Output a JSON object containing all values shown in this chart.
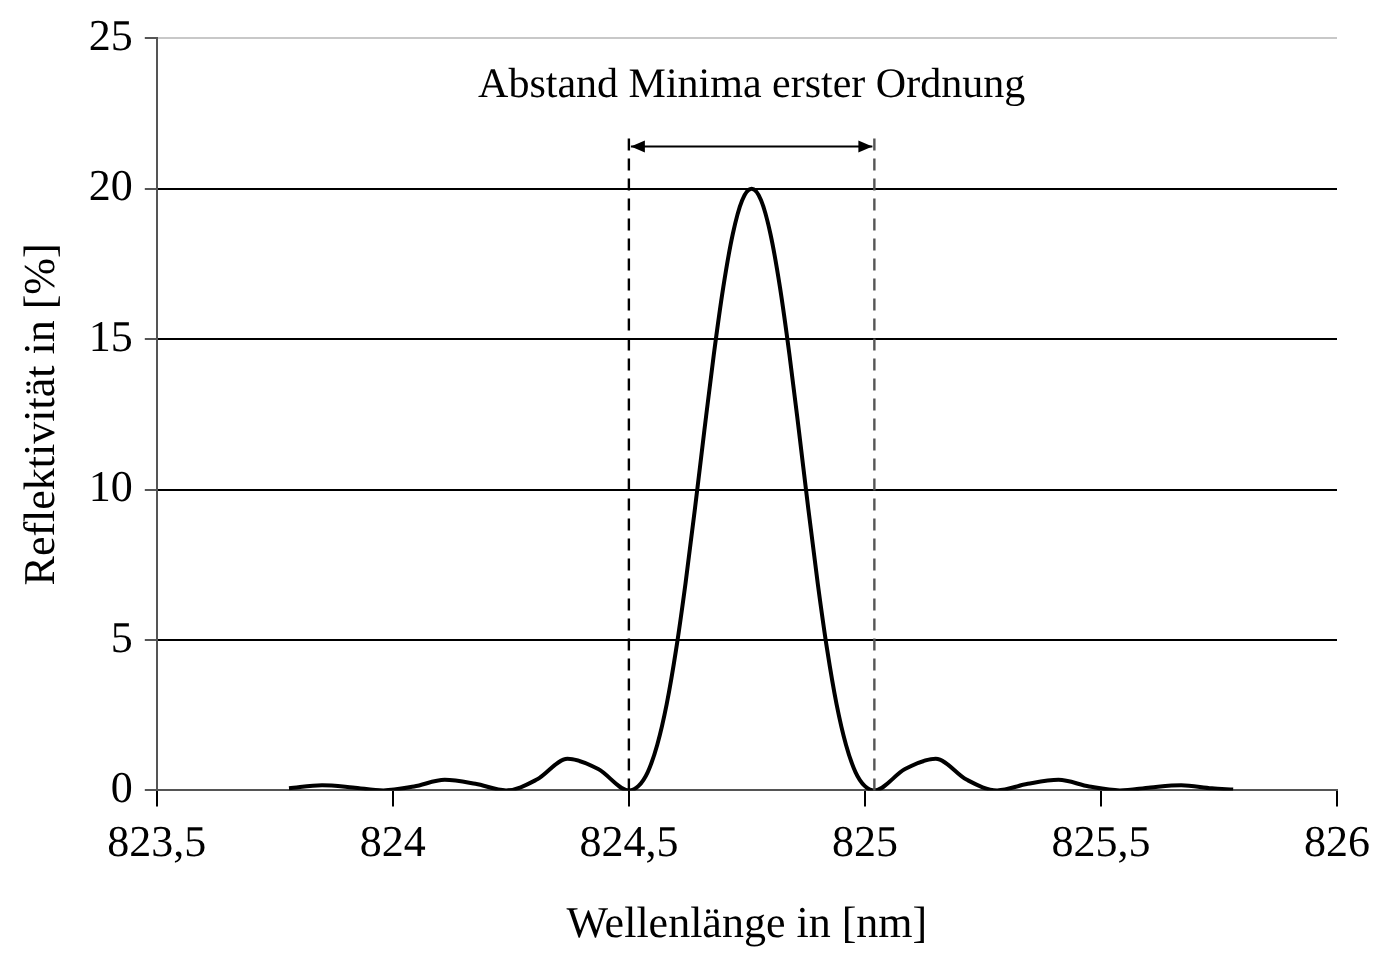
{
  "chart_data": {
    "type": "line",
    "xlabel": "Wellenlänge in [nm]",
    "ylabel": "Reflektivität in [%]",
    "xlim": [
      823.5,
      826
    ],
    "xticks": [
      {
        "value": 823.5,
        "label": "823,5"
      },
      824,
      {
        "value": 824.5,
        "label": "824,5"
      },
      825,
      {
        "value": 825.5,
        "label": "825,5"
      },
      826
    ],
    "ylim": [
      0,
      25
    ],
    "yticks": [
      0,
      5,
      10,
      15,
      20,
      25
    ],
    "grid": "y",
    "legend": false,
    "marker": "none",
    "line_style": "solid",
    "series": [
      {
        "color": "#000000",
        "x": [
          823.78,
          823.85,
          823.915,
          823.98,
          824.045,
          824.11,
          824.175,
          824.24,
          824.305,
          824.37,
          824.435,
          824.5,
          824.52,
          824.54,
          824.56,
          824.58,
          824.6,
          824.62,
          824.64,
          824.66,
          824.68,
          824.7,
          824.72,
          824.74,
          824.76,
          824.78,
          824.8,
          824.82,
          824.84,
          824.86,
          824.88,
          824.9,
          824.92,
          824.94,
          824.96,
          824.98,
          825.0,
          825.02,
          825.085,
          825.15,
          825.215,
          825.28,
          825.345,
          825.41,
          825.475,
          825.54,
          825.605,
          825.67,
          825.735,
          825.78
        ],
        "values": [
          0.07,
          0.17,
          0.1,
          0,
          0.13,
          0.35,
          0.22,
          0,
          0.36,
          1.05,
          0.71,
          0,
          0.14,
          0.61,
          1.51,
          2.86,
          4.68,
          6.89,
          9.37,
          11.98,
          14.5,
          16.73,
          18.49,
          19.62,
          20,
          19.62,
          18.49,
          16.73,
          14.5,
          11.98,
          9.37,
          6.89,
          4.68,
          2.86,
          1.51,
          0.61,
          0.14,
          0,
          0.71,
          1.05,
          0.36,
          0,
          0.22,
          0.35,
          0.13,
          0,
          0.1,
          0.17,
          0.07,
          0.03
        ]
      }
    ],
    "ref_lines": [
      {
        "axis": "x",
        "value": 824.5,
        "color": "#000000",
        "line_style": "dashed"
      },
      {
        "axis": "x",
        "value": 825.02,
        "color": "#555555",
        "line_style": "dashed"
      }
    ],
    "annotations": [
      "Abstand Minima erster Ordnung"
    ]
  }
}
